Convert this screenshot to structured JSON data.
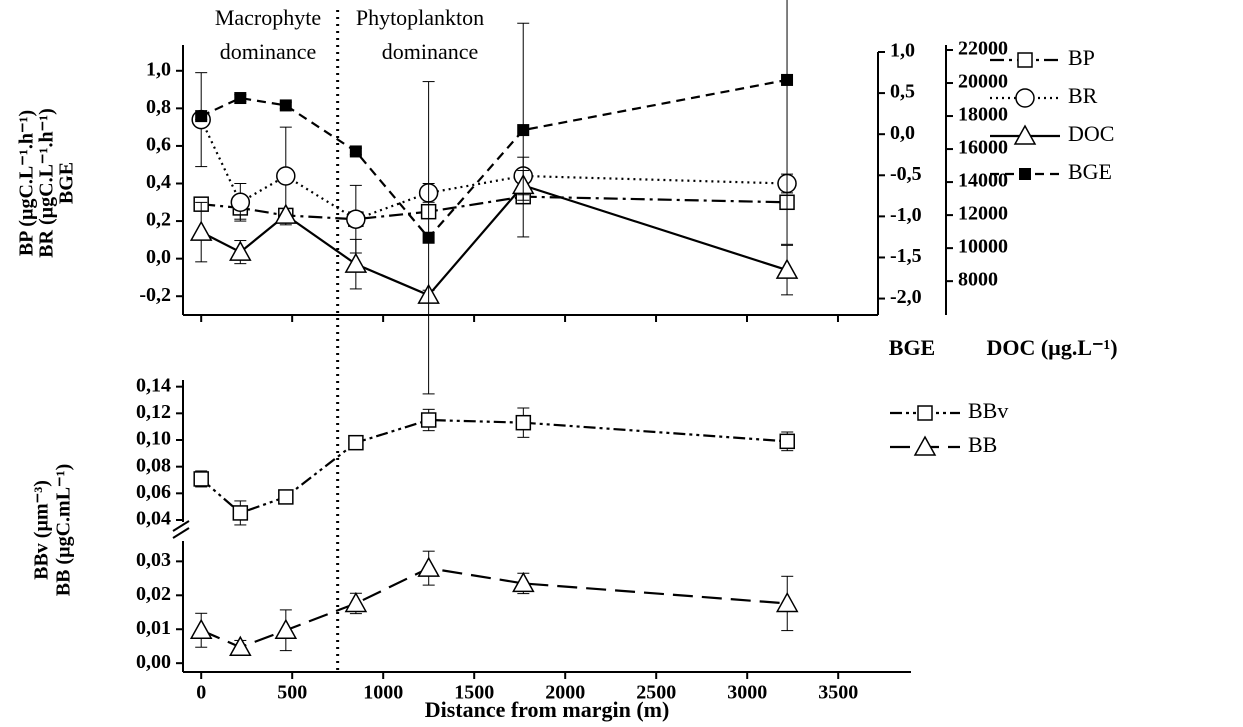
{
  "chart_data": [
    {
      "type": "line",
      "annotations": [
        [
          "Macrophyte",
          "dominance"
        ],
        [
          "Phytoplankton",
          "dominance"
        ]
      ],
      "divider_x": 750,
      "ylabel": [
        "BP (µgC.L⁻¹.h⁻¹)",
        "BR (µgC.L⁻¹.h⁻¹)",
        "BGE"
      ],
      "y2label": "BGE",
      "y3label": "DOC (µg.L⁻¹)",
      "legend": "right",
      "xlim": [
        -100,
        3720
      ],
      "xticks": [
        0,
        500,
        1000,
        1500,
        2000,
        2500,
        3000,
        3500
      ],
      "ylim": [
        -0.3,
        1.1
      ],
      "yticks": [
        {
          "value": -0.2,
          "label": "-0,2"
        },
        {
          "value": 0,
          "label": "0,0"
        },
        {
          "value": 0.2,
          "label": "0,2"
        },
        {
          "value": 0.4,
          "label": "0,4"
        },
        {
          "value": 0.6,
          "label": "0,6"
        },
        {
          "value": 0.8,
          "label": "0,8"
        },
        {
          "value": 1.0,
          "label": "1,0"
        }
      ],
      "y2lim": [
        -2.2,
        1.0
      ],
      "y2ticks": [
        {
          "value": -2.0,
          "label": "-2,0"
        },
        {
          "value": -1.5,
          "label": "-1,5"
        },
        {
          "value": -1.0,
          "label": "-1,0"
        },
        {
          "value": -0.5,
          "label": "-0,5"
        },
        {
          "value": 0,
          "label": "0,0"
        },
        {
          "value": 0.5,
          "label": "0,5"
        },
        {
          "value": 1.0,
          "label": "1,0"
        }
      ],
      "y3lim": [
        5950,
        22000
      ],
      "y3ticks": [
        8000,
        10000,
        12000,
        14000,
        16000,
        18000,
        20000,
        22000
      ],
      "x": [
        0,
        215,
        465,
        850,
        1250,
        1770,
        3220
      ],
      "series": [
        {
          "name": "BP",
          "color": "#000000",
          "line_style": "dashdot",
          "marker": "square-open",
          "axis": "y",
          "values": [
            0.29,
            0.27,
            0.23,
            0.21,
            0.25,
            0.33,
            0.3
          ],
          "errors": [
            0.02,
            0.06,
            0.03,
            0.04,
            0.02,
            0.03,
            0.02
          ]
        },
        {
          "name": "BR",
          "color": "#000000",
          "line_style": "dotted",
          "marker": "circle-open",
          "axis": "y",
          "values": [
            0.74,
            0.3,
            0.44,
            0.21,
            0.35,
            0.44,
            0.4
          ],
          "errors": [
            0.25,
            0.1,
            0.26,
            0.18,
            0.05,
            0.1,
            0.05
          ]
        },
        {
          "name": "DOC",
          "color": "#000000",
          "line_style": "solid",
          "marker": "triangle-open",
          "axis": "y3",
          "values": [
            10970,
            9760,
            12000,
            9030,
            7150,
            13800,
            8670
          ],
          "errors": [
            1800,
            700,
            400,
            1500,
            300,
            900,
            1500
          ]
        },
        {
          "name": "BGE",
          "color": "#000000",
          "line_style": "dashed",
          "marker": "square-filled",
          "axis": "y2",
          "values": [
            0.22,
            0.44,
            0.35,
            -0.21,
            -1.26,
            0.05,
            0.66
          ],
          "errors": [
            0.04,
            0.04,
            0.04,
            0.04,
            1.9,
            1.3,
            2.0
          ]
        }
      ]
    },
    {
      "type": "line",
      "xlabel": "Distance from margin (m)",
      "ylabel": [
        "BBv (µm⁻³)",
        "BB (µgC.mL⁻¹)"
      ],
      "legend": "right",
      "xlim": [
        -100,
        3900
      ],
      "xticks": [
        0,
        500,
        1000,
        1500,
        2000,
        2500,
        3000,
        3500
      ],
      "ylim": [
        -0.0026,
        0.036
      ],
      "yticks": [
        {
          "value": 0,
          "label": "0,00"
        },
        {
          "value": 0.01,
          "label": "0,01"
        },
        {
          "value": 0.02,
          "label": "0,02"
        },
        {
          "value": 0.03,
          "label": "0,03"
        }
      ],
      "ylim_upper": [
        0.0385,
        0.145
      ],
      "yticks_upper": [
        {
          "value": 0.04,
          "label": "0,04"
        },
        {
          "value": 0.06,
          "label": "0,06"
        },
        {
          "value": 0.08,
          "label": "0,08"
        },
        {
          "value": 0.1,
          "label": "0,10"
        },
        {
          "value": 0.12,
          "label": "0,12"
        },
        {
          "value": 0.14,
          "label": "0,14"
        }
      ],
      "x": [
        0,
        215,
        465,
        850,
        1250,
        1770,
        3220
      ],
      "series": [
        {
          "name": "BBv",
          "color": "#000000",
          "line_style": "dashdotdot",
          "marker": "square-open",
          "axis": "upper",
          "values": [
            0.0708,
            0.0453,
            0.0573,
            0.098,
            0.115,
            0.113,
            0.099
          ],
          "errors": [
            0.006,
            0.009,
            0.002,
            0.004,
            0.008,
            0.011,
            0.007
          ]
        },
        {
          "name": "BB",
          "color": "#000000",
          "line_style": "longdash",
          "marker": "triangle-open",
          "axis": "lower",
          "values": [
            0.0097,
            0.0047,
            0.0097,
            0.0176,
            0.028,
            0.0235,
            0.0176
          ],
          "errors": [
            0.005,
            0.002,
            0.006,
            0.003,
            0.005,
            0.003,
            0.008
          ]
        }
      ]
    }
  ]
}
